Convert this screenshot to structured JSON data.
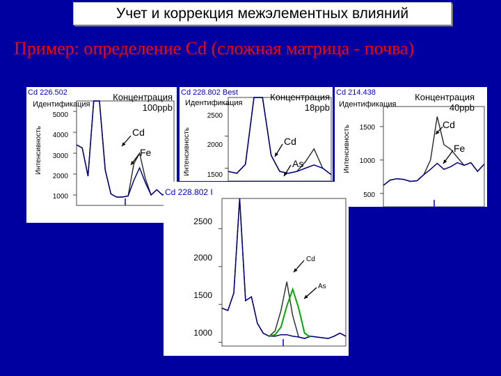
{
  "slide": {
    "title": "Учет и коррекция межэлементных влияний",
    "subtitle": "Пример: определение Cd (сложная матрица - почва)"
  },
  "colors": {
    "background": "#0000a0",
    "subtitle": "#ff0000",
    "line_blank": "#000080",
    "line_sample": "#333333",
    "line_as": "#00aa00",
    "marker": "#0000cc"
  },
  "chart_data": [
    {
      "type": "line",
      "title": "Cd 226.502",
      "identification_label": "Идентификация",
      "ylabel": "Интенсивность",
      "concentration_label": "Концентрация",
      "concentration_value": "100ppb",
      "yticks": [
        1000,
        2000,
        3000,
        4000,
        5000
      ],
      "ylim": [
        500,
        5500
      ],
      "annotations": [
        "Cd",
        "Fe"
      ],
      "series": [
        {
          "values": [
            3400,
            3250,
            1900,
            5500,
            5500,
            2200,
            1050,
            900,
            900,
            950,
            2500,
            3000,
            1800,
            1000,
            1250,
            1000,
            1100,
            1000
          ]
        },
        {
          "values": [
            3400,
            3250,
            1900,
            5500,
            5500,
            2200,
            1050,
            900,
            900,
            950,
            1700,
            2300,
            1600,
            1000,
            1250,
            1000,
            1100,
            1000
          ]
        }
      ]
    },
    {
      "type": "line",
      "title": "Cd 228.802 Best",
      "identification_label": "Идентификация",
      "ylabel": "Интенсивность",
      "concentration_label": "Концентрация",
      "concentration_value": "18ppb",
      "yticks": [
        1500,
        2000,
        2500
      ],
      "ylim": [
        1300,
        2600
      ],
      "annotations": [
        "Cd",
        "As"
      ],
      "series": [
        {
          "values": [
            1450,
            1420,
            1560,
            2600,
            2600,
            1700,
            1450,
            1420,
            1450,
            1600,
            1800,
            1500,
            1400
          ]
        },
        {
          "values": [
            1450,
            1420,
            1560,
            2600,
            2600,
            1700,
            1450,
            1420,
            1450,
            1500,
            1550,
            1500,
            1400
          ]
        }
      ]
    },
    {
      "type": "line",
      "title": "Cd 214.438",
      "identification_label": "Идентификация",
      "ylabel": "Интенсивность",
      "concentration_label": "Концентрация",
      "concentration_value": "40ppb",
      "yticks": [
        500,
        1000,
        1500
      ],
      "ylim": [
        300,
        1800
      ],
      "annotations": [
        "Cd",
        "Fe"
      ],
      "series": [
        {
          "values": [
            620,
            700,
            720,
            710,
            680,
            690,
            780,
            1000,
            1650,
            1230,
            1160,
            1040,
            920,
            960,
            830,
            940
          ]
        },
        {
          "values": [
            620,
            700,
            720,
            710,
            680,
            690,
            780,
            860,
            950,
            860,
            900,
            960,
            920,
            960,
            830,
            940
          ]
        }
      ]
    },
    {
      "type": "line",
      "title": "Cd 228.802 I",
      "yticks": [
        1000,
        1500,
        2000,
        2500
      ],
      "ylim": [
        950,
        2900
      ],
      "annotations": [
        "Cd",
        "As"
      ],
      "series": [
        {
          "values": [
            1450,
            1420,
            1650,
            2900,
            1550,
            1600,
            1250,
            1120,
            1080,
            1150,
            1420,
            1800,
            1350,
            1070,
            1050,
            1080,
            1070,
            1060,
            1050,
            1080,
            1120,
            1080
          ]
        },
        {
          "values": [
            1450,
            1420,
            1650,
            2900,
            1550,
            1600,
            1250,
            1120,
            1080,
            1080,
            1100,
            1100,
            1080,
            1070,
            1050,
            1080,
            1070,
            1060,
            1050,
            1080,
            1120,
            1080
          ]
        },
        {
          "values": [
            1080,
            1100,
            1200,
            1480,
            1700,
            1450,
            1120,
            1070
          ]
        }
      ]
    }
  ]
}
